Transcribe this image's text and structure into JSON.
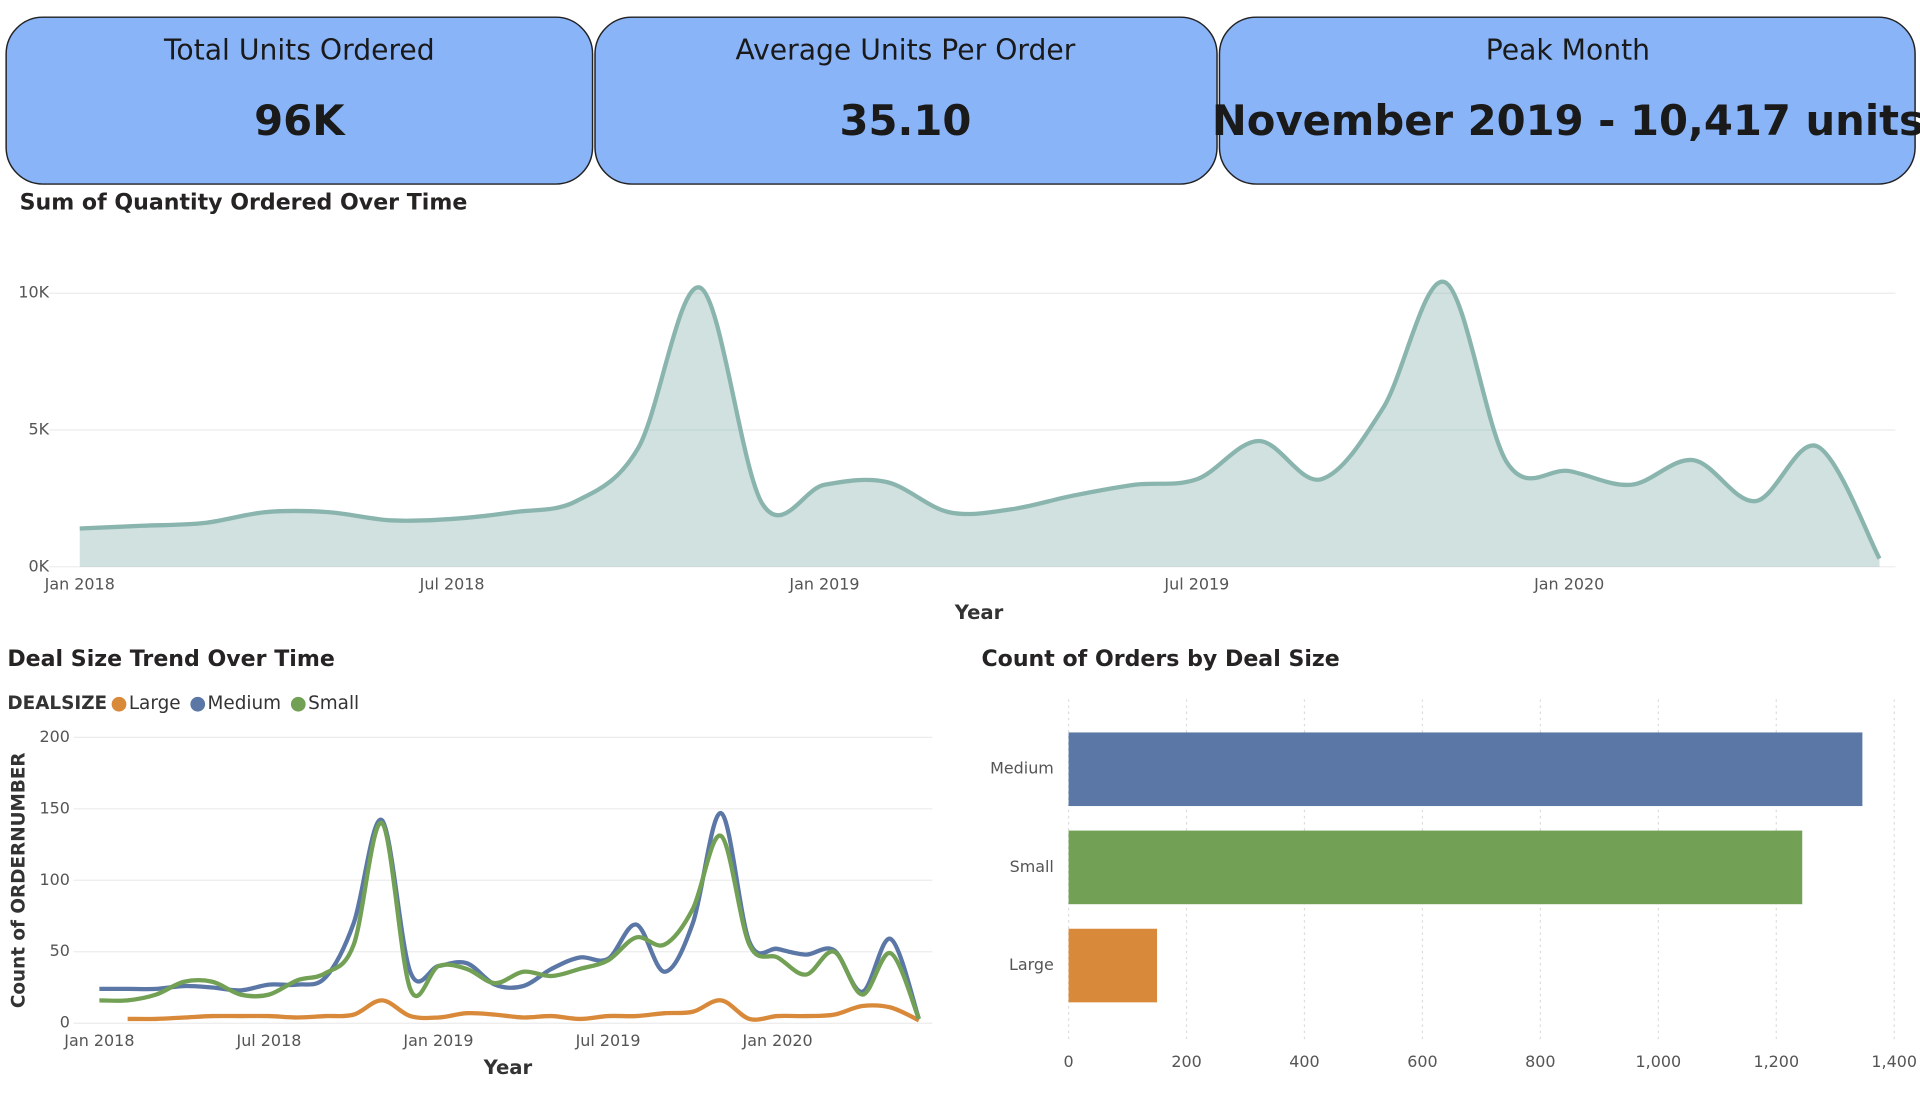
{
  "kpis": [
    {
      "title": "Total Units Ordered",
      "value": "96K"
    },
    {
      "title": "Average Units Per Order",
      "value": "35.10"
    },
    {
      "title": "Peak Month",
      "value": "November 2019 - 10,417 units"
    }
  ],
  "chart_data": [
    {
      "type": "area",
      "title": "Sum of Quantity Ordered Over Time",
      "xlabel": "Year",
      "color": "#8ab5ae",
      "grid": true,
      "x": [
        "2018-01",
        "2018-02",
        "2018-03",
        "2018-04",
        "2018-05",
        "2018-06",
        "2018-07",
        "2018-08",
        "2018-09",
        "2018-10",
        "2018-11",
        "2018-12",
        "2019-01",
        "2019-02",
        "2019-03",
        "2019-04",
        "2019-05",
        "2019-06",
        "2019-07",
        "2019-08",
        "2019-09",
        "2019-10",
        "2019-11",
        "2019-12",
        "2020-01",
        "2020-02",
        "2020-03",
        "2020-04",
        "2020-05",
        "2020-06"
      ],
      "values": [
        1400,
        1500,
        1600,
        2000,
        2000,
        1700,
        1750,
        2000,
        2400,
        4350,
        10200,
        2300,
        3000,
        3100,
        2000,
        2100,
        2600,
        3000,
        3200,
        4600,
        3200,
        5800,
        10400,
        3800,
        3500,
        3000,
        3900,
        2400,
        4400,
        300
      ],
      "ylim": [
        0,
        11000
      ],
      "yticks": [
        {
          "value": 0,
          "label": "0K"
        },
        {
          "value": 5000,
          "label": "5K"
        },
        {
          "value": 10000,
          "label": "10K"
        }
      ],
      "xticks": [
        {
          "value": "2018-01",
          "label": "Jan 2018"
        },
        {
          "value": "2018-07",
          "label": "Jul 2018"
        },
        {
          "value": "2019-01",
          "label": "Jan 2019"
        },
        {
          "value": "2019-07",
          "label": "Jul 2019"
        },
        {
          "value": "2020-01",
          "label": "Jan 2020"
        }
      ]
    },
    {
      "type": "line",
      "title": "Deal Size Trend Over Time",
      "legend_title": "DEALSIZE",
      "xlabel": "Year",
      "ylabel": "Count of ORDERNUMBER",
      "grid": true,
      "x": [
        "2018-01",
        "2018-02",
        "2018-03",
        "2018-04",
        "2018-05",
        "2018-06",
        "2018-07",
        "2018-08",
        "2018-09",
        "2018-10",
        "2018-11",
        "2018-12",
        "2019-01",
        "2019-02",
        "2019-03",
        "2019-04",
        "2019-05",
        "2019-06",
        "2019-07",
        "2019-08",
        "2019-09",
        "2019-10",
        "2019-11",
        "2019-12",
        "2020-01",
        "2020-02",
        "2020-03",
        "2020-04",
        "2020-05",
        "2020-06"
      ],
      "series": [
        {
          "name": "Large",
          "color": "#d9893a",
          "values": [
            null,
            3,
            3,
            4,
            5,
            5,
            5,
            4,
            5,
            6,
            16,
            5,
            4,
            7,
            6,
            4,
            5,
            3,
            5,
            5,
            7,
            8,
            16,
            3,
            5,
            5,
            6,
            12,
            11,
            2
          ]
        },
        {
          "name": "Medium",
          "color": "#5b77a6",
          "values": [
            24,
            24,
            24,
            26,
            25,
            23,
            27,
            27,
            32,
            70,
            142,
            36,
            40,
            42,
            27,
            26,
            38,
            46,
            45,
            69,
            36,
            70,
            147,
            57,
            52,
            48,
            51,
            22,
            59,
            3
          ]
        },
        {
          "name": "Small",
          "color": "#72a054",
          "values": [
            16,
            16,
            20,
            29,
            29,
            20,
            20,
            30,
            35,
            55,
            140,
            24,
            40,
            38,
            28,
            36,
            33,
            38,
            44,
            60,
            55,
            80,
            131,
            55,
            46,
            34,
            50,
            20,
            49,
            3
          ]
        }
      ],
      "ylim": [
        0,
        200
      ],
      "yticks": [
        0,
        50,
        100,
        150,
        200
      ],
      "xticks": [
        {
          "value": "2018-01",
          "label": "Jan 2018"
        },
        {
          "value": "2018-07",
          "label": "Jul 2018"
        },
        {
          "value": "2019-01",
          "label": "Jan 2019"
        },
        {
          "value": "2019-07",
          "label": "Jul 2019"
        },
        {
          "value": "2020-01",
          "label": "Jan 2020"
        }
      ]
    },
    {
      "type": "hbar",
      "title": "Count of Orders by Deal Size",
      "grid": true,
      "categories": [
        "Medium",
        "Small",
        "Large"
      ],
      "values": [
        1346,
        1244,
        150
      ],
      "colors": [
        "#5b77a6",
        "#72a054",
        "#d9893a"
      ],
      "xlim": [
        0,
        1400
      ],
      "xticks": [
        0,
        200,
        400,
        600,
        800,
        {
          "value": 1000,
          "label": "1,000"
        },
        {
          "value": 1200,
          "label": "1,200"
        },
        {
          "value": 1400,
          "label": "1,400"
        }
      ]
    }
  ]
}
